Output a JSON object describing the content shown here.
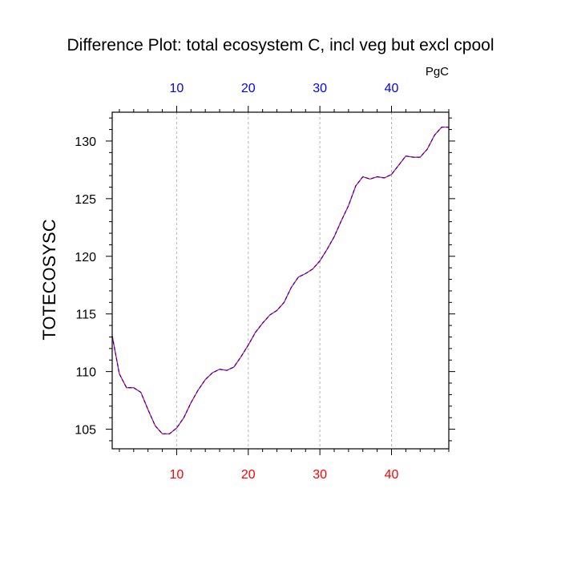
{
  "chart_data": {
    "type": "line",
    "title": "Difference Plot: total ecosystem C, incl veg but excl cpool",
    "units_label": "PgC",
    "ylabel": "TOTECOSYSC",
    "xlim": [
      1,
      48
    ],
    "ylim": [
      103.3,
      132.5
    ],
    "x_ticks": [
      10,
      20,
      30,
      40
    ],
    "y_ticks": [
      105,
      110,
      115,
      120,
      125,
      130
    ],
    "grid": "vertical-dashed",
    "colors": {
      "bottom_tick_labels": "#ff0000",
      "top_tick_labels": "#0000ff",
      "series_a": "#ff0000",
      "series_b": "#0000ff"
    },
    "x": [
      1,
      2,
      3,
      4,
      5,
      6,
      7,
      8,
      9,
      10,
      11,
      12,
      13,
      14,
      15,
      16,
      17,
      18,
      19,
      20,
      21,
      22,
      23,
      24,
      25,
      26,
      27,
      28,
      29,
      30,
      31,
      32,
      33,
      34,
      35,
      36,
      37,
      38,
      39,
      40,
      41,
      42,
      43,
      44,
      45,
      46,
      47,
      48
    ],
    "series": [
      {
        "values": [
          113.1,
          109.8,
          108.6,
          108.6,
          108.2,
          106.7,
          105.3,
          104.6,
          104.6,
          105.1,
          106.0,
          107.3,
          108.4,
          109.3,
          109.9,
          110.2,
          110.1,
          110.4,
          111.3,
          112.3,
          113.4,
          114.2,
          114.9,
          115.3,
          116.0,
          117.3,
          118.2,
          118.5,
          118.9,
          119.6,
          120.6,
          121.7,
          123.1,
          124.4,
          126.1,
          126.9,
          126.7,
          126.9,
          126.8,
          127.1,
          127.9,
          128.7,
          128.6,
          128.6,
          129.3,
          130.5,
          131.2,
          131.2
        ]
      }
    ]
  }
}
